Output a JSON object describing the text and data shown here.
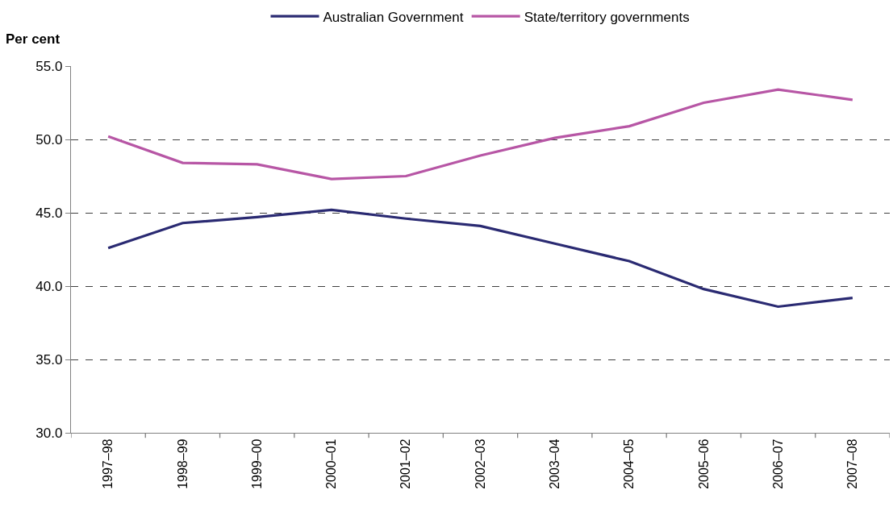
{
  "chart_data": {
    "type": "line",
    "ylabel": "Per cent",
    "categories": [
      "1997–98",
      "1998–99",
      "1999–00",
      "2000–01",
      "2001–02",
      "2002–03",
      "2003–04",
      "2004–05",
      "2005–06",
      "2006–07",
      "2007–08"
    ],
    "series": [
      {
        "name": "Australian Government",
        "color": "#2a2a72",
        "values": [
          42.6,
          44.3,
          44.7,
          45.2,
          44.6,
          44.1,
          42.9,
          41.7,
          39.8,
          38.6,
          39.2
        ]
      },
      {
        "name": "State/territory governments",
        "color": "#b756a5",
        "values": [
          50.2,
          48.4,
          48.3,
          47.3,
          47.5,
          48.9,
          50.1,
          50.9,
          52.5,
          53.4,
          52.7
        ]
      }
    ],
    "ylim": [
      30,
      55
    ],
    "yticks": [
      {
        "value": 30,
        "label": "30.0"
      },
      {
        "value": 35,
        "label": "35.0"
      },
      {
        "value": 40,
        "label": "40.0"
      },
      {
        "value": 45,
        "label": "45.0"
      },
      {
        "value": 50,
        "label": "50.0"
      },
      {
        "value": 55,
        "label": "55.0"
      }
    ],
    "grid": "y",
    "legend": "top",
    "line_style": "solid"
  }
}
